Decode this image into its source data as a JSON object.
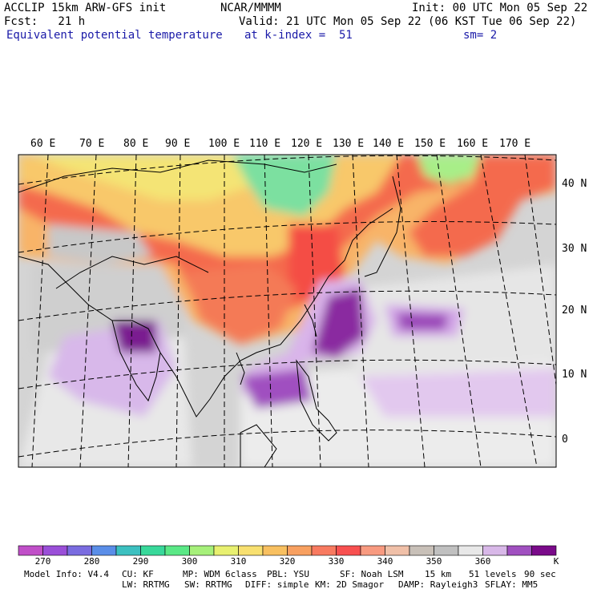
{
  "header": {
    "title_left": "ACCLIP 15km ARW-GFS init",
    "org": "NCAR/MMMM",
    "init": "Init: 00 UTC Mon 05 Sep 22",
    "fcst": "Fcst:   21 h",
    "valid": "Valid: 21 UTC Mon 05 Sep 22 (06 KST Tue 06 Sep 22)",
    "field": "Equivalent potential temperature",
    "level": "at k-index =  51",
    "smooth": "sm= 2"
  },
  "map": {
    "lon_labels": [
      "60 E",
      "70 E",
      "80 E",
      "90 E",
      "100 E",
      "110 E",
      "120 E",
      "130 E",
      "140 E",
      "150 E",
      "160 E",
      "170 E"
    ],
    "lat_labels": [
      "40 N",
      "30 N",
      "20 N",
      "10 N",
      "0"
    ]
  },
  "colorbar": {
    "colors": [
      "#c04fc8",
      "#9a4fd8",
      "#7a6ce0",
      "#5a8ee8",
      "#3cc0c0",
      "#38d89a",
      "#5ae886",
      "#a6f07a",
      "#e8f070",
      "#f8e070",
      "#f8c060",
      "#f8a060",
      "#f87a60",
      "#f85050",
      "#f89a80",
      "#f0c0a8",
      "#c8c0b8",
      "#c0c0c0",
      "#e8e8e8",
      "#d8b8e8",
      "#a050c0",
      "#7a0a8a"
    ],
    "labels": [
      "270",
      "280",
      "290",
      "300",
      "310",
      "320",
      "330",
      "340",
      "350",
      "360",
      "K"
    ]
  },
  "footer": {
    "line1": [
      "Model Info: V4.4",
      "CU: KF",
      "MP: WDM 6class",
      "PBL: YSU",
      "SF: Noah LSM",
      "15 km",
      "51 levels",
      "90 sec"
    ],
    "line2": [
      "LW: RRTMG",
      "SW: RRTMG",
      "DIFF: simple",
      "KM: 2D Smagor",
      "DAMP: Rayleigh3",
      "SFLAY: MM5"
    ]
  }
}
